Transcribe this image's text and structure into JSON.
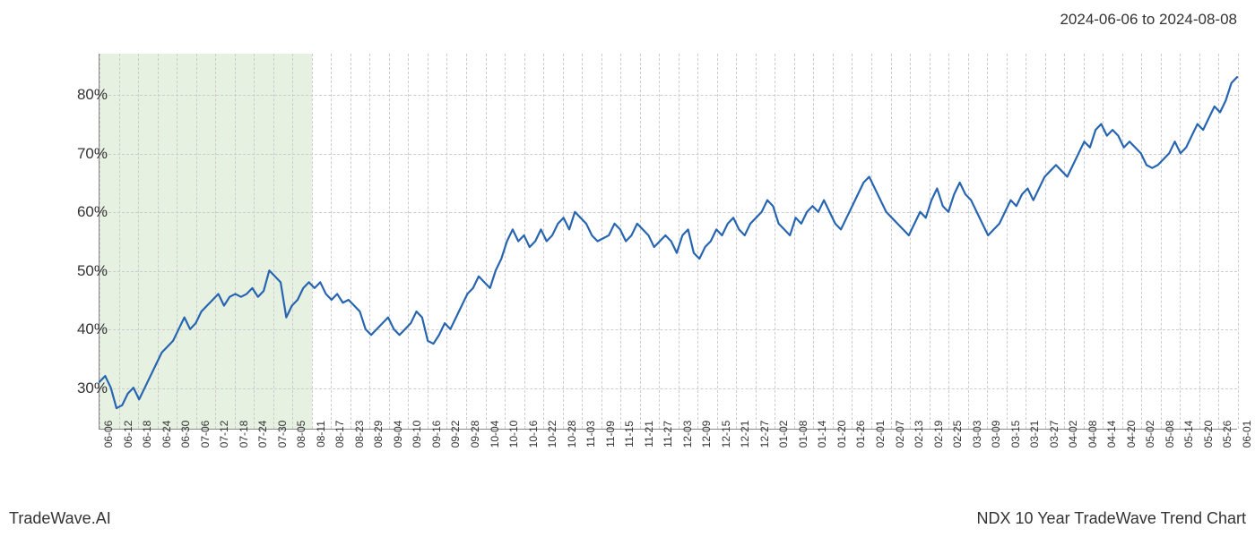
{
  "header": {
    "date_range": "2024-06-06 to 2024-08-08"
  },
  "footer": {
    "left": "TradeWave.AI",
    "right": "NDX 10 Year TradeWave Trend Chart"
  },
  "chart": {
    "type": "line",
    "background_color": "#ffffff",
    "grid_color": "#cccccc",
    "axis_color": "#888888",
    "line_color": "#2765b0",
    "line_width": 2.2,
    "highlight_band_color": "#d5e8ce",
    "highlight_band_opacity": 0.6,
    "highlight_start_index": 0,
    "highlight_end_index": 11,
    "ylim": [
      23,
      87
    ],
    "y_ticks": [
      30,
      40,
      50,
      60,
      70,
      80
    ],
    "y_tick_suffix": "%",
    "y_tick_fontsize": 17,
    "x_tick_fontsize": 12,
    "x_labels": [
      "06-06",
      "06-12",
      "06-18",
      "06-24",
      "06-30",
      "07-06",
      "07-12",
      "07-18",
      "07-24",
      "07-30",
      "08-05",
      "08-11",
      "08-17",
      "08-23",
      "08-29",
      "09-04",
      "09-10",
      "09-16",
      "09-22",
      "09-28",
      "10-04",
      "10-10",
      "10-16",
      "10-22",
      "10-28",
      "11-03",
      "11-09",
      "11-15",
      "11-21",
      "11-27",
      "12-03",
      "12-09",
      "12-15",
      "12-21",
      "12-27",
      "01-02",
      "01-08",
      "01-14",
      "01-20",
      "01-26",
      "02-01",
      "02-07",
      "02-13",
      "02-19",
      "02-25",
      "03-03",
      "03-09",
      "03-15",
      "03-21",
      "03-27",
      "04-02",
      "04-08",
      "04-14",
      "04-20",
      "05-02",
      "05-08",
      "05-14",
      "05-20",
      "05-26",
      "06-01"
    ],
    "values": [
      31,
      32,
      30,
      26.5,
      27,
      29,
      30,
      28,
      30,
      32,
      34,
      36,
      37,
      38,
      40,
      42,
      40,
      41,
      43,
      44,
      45,
      46,
      44,
      45.5,
      46,
      45.5,
      46,
      47,
      45.5,
      46.5,
      50,
      49,
      48,
      42,
      44,
      45,
      47,
      48,
      47,
      48,
      46,
      45,
      46,
      44.5,
      45,
      44,
      43,
      40,
      39,
      40,
      41,
      42,
      40,
      39,
      40,
      41,
      43,
      42,
      38,
      37.5,
      39,
      41,
      40,
      42,
      44,
      46,
      47,
      49,
      48,
      47,
      50,
      52,
      55,
      57,
      55,
      56,
      54,
      55,
      57,
      55,
      56,
      58,
      59,
      57,
      60,
      59,
      58,
      56,
      55,
      55.5,
      56,
      58,
      57,
      55,
      56,
      58,
      57,
      56,
      54,
      55,
      56,
      55,
      53,
      56,
      57,
      53,
      52,
      54,
      55,
      57,
      56,
      58,
      59,
      57,
      56,
      58,
      59,
      60,
      62,
      61,
      58,
      57,
      56,
      59,
      58,
      60,
      61,
      60,
      62,
      60,
      58,
      57,
      59,
      61,
      63,
      65,
      66,
      64,
      62,
      60,
      59,
      58,
      57,
      56,
      58,
      60,
      59,
      62,
      64,
      61,
      60,
      63,
      65,
      63,
      62,
      60,
      58,
      56,
      57,
      58,
      60,
      62,
      61,
      63,
      64,
      62,
      64,
      66,
      67,
      68,
      67,
      66,
      68,
      70,
      72,
      71,
      74,
      75,
      73,
      74,
      73,
      71,
      72,
      71,
      70,
      68,
      67.5,
      68,
      69,
      70,
      72,
      70,
      71,
      73,
      75,
      74,
      76,
      78,
      77,
      79,
      82,
      83
    ],
    "values_per_label": 3.35
  }
}
